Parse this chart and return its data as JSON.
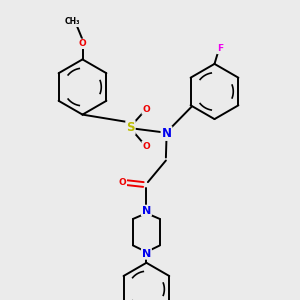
{
  "bg_color": "#ebebeb",
  "bond_color": "#000000",
  "atom_colors": {
    "N": "#0000ee",
    "O": "#ee0000",
    "S": "#bbbb00",
    "F": "#ee00ee",
    "C": "#000000"
  },
  "lw": 1.4
}
